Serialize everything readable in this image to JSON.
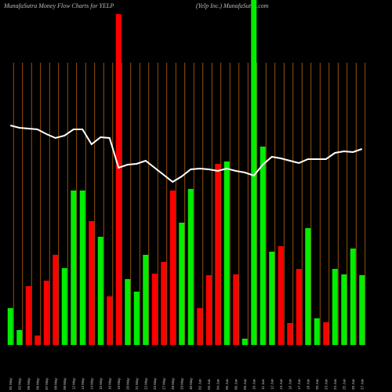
{
  "chart_data": {
    "type": "bar",
    "title": "MunafaSutra  Money Flow  Charts for YELP",
    "subtitle": "(Yelp Inc.) MunafaSutra.com",
    "categories": [
      "01 May",
      "02 May",
      "05 May",
      "06 May",
      "07 May",
      "08 May",
      "09 May",
      "12 May",
      "13 May",
      "14 May",
      "15 May",
      "16 May",
      "19 May",
      "20 May",
      "21 May",
      "22 May",
      "23 May",
      "27 May",
      "28 May",
      "29 May",
      "30 May",
      "02 Jun",
      "03 Jun",
      "04 Jun",
      "05 Jun",
      "06 Jun",
      "09 Jun",
      "10 Jun",
      "11 Jun",
      "12 Jun",
      "13 Jun",
      "16 Jun",
      "17 Jun",
      "18 Jun",
      "20 Jun",
      "23 Jun",
      "24 Jun",
      "25 Jun",
      "26 Jun",
      "27 Jun"
    ],
    "ylim": [
      0,
      440
    ],
    "series": [
      {
        "name": "Money Flow",
        "values": [
          47,
          19,
          75,
          12,
          82,
          115,
          98,
          197,
          197,
          158,
          138,
          62,
          422,
          84,
          68,
          115,
          91,
          106,
          197,
          156,
          199,
          47,
          89,
          231,
          234,
          90,
          8,
          440,
          253,
          119,
          126,
          28,
          97,
          149,
          34,
          29,
          97,
          90,
          123,
          89
        ],
        "colors": [
          "#00ee00",
          "#00ee00",
          "#ff0000",
          "#ff0000",
          "#ff0000",
          "#ff0000",
          "#00ee00",
          "#00ee00",
          "#00ee00",
          "#ff0000",
          "#00ee00",
          "#ff0000",
          "#ff0000",
          "#00ee00",
          "#00ee00",
          "#00ee00",
          "#ff0000",
          "#ff0000",
          "#ff0000",
          "#00ee00",
          "#00ee00",
          "#ff0000",
          "#ff0000",
          "#ff0000",
          "#00ee00",
          "#ff0000",
          "#00ee00",
          "#00ee00",
          "#00ee00",
          "#00ee00",
          "#ff0000",
          "#ff0000",
          "#ff0000",
          "#00ee00",
          "#00ee00",
          "#ff0000",
          "#00ee00",
          "#00ee00",
          "#00ee00",
          "#00ee00"
        ]
      },
      {
        "name": "Price",
        "type": "line",
        "color": "#ffffff",
        "values": [
          280,
          277,
          276,
          275,
          269,
          264,
          267,
          275,
          275,
          256,
          265,
          264,
          226,
          230,
          231,
          235,
          226,
          217,
          208,
          215,
          224,
          225,
          224,
          222,
          225,
          222,
          220,
          216,
          230,
          240,
          238,
          235,
          232,
          237,
          237,
          237,
          245,
          247,
          246,
          250
        ]
      }
    ],
    "grid_color": "#b8660b"
  }
}
